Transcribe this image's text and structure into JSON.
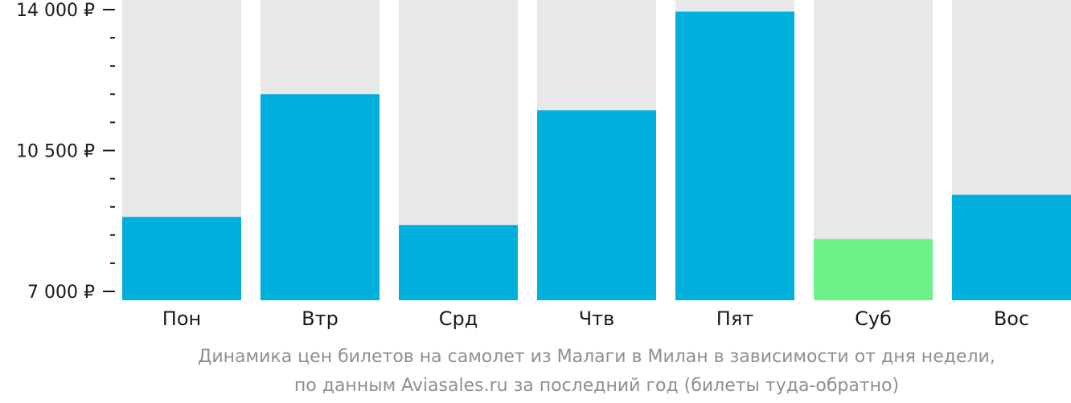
{
  "chart_data": {
    "type": "bar",
    "categories": [
      "Пон",
      "Втр",
      "Срд",
      "Чтв",
      "Пят",
      "Суб",
      "Вос"
    ],
    "values": [
      8850,
      11900,
      8650,
      11500,
      13950,
      8300,
      9400
    ],
    "highlight_index": 5,
    "ylim": [
      7000,
      14000
    ],
    "yticks": [
      {
        "value": 14000,
        "label": "14 000 ₽"
      },
      {
        "value": 10500,
        "label": "10 500 ₽"
      },
      {
        "value": 7000,
        "label": "7 000 ₽"
      }
    ],
    "minor_tick_step": 700,
    "colors": {
      "bar": "#00b0dc",
      "highlight": "#6cf286",
      "background_bar": "#e8e8e8",
      "axis": "#1a1a1a"
    }
  },
  "caption": {
    "line1": "Динамика цен билетов на самолет из Малаги в Милан в зависимости от дня недели,",
    "line2": "по данным Aviasales.ru за последний год (билеты туда-обратно)"
  }
}
